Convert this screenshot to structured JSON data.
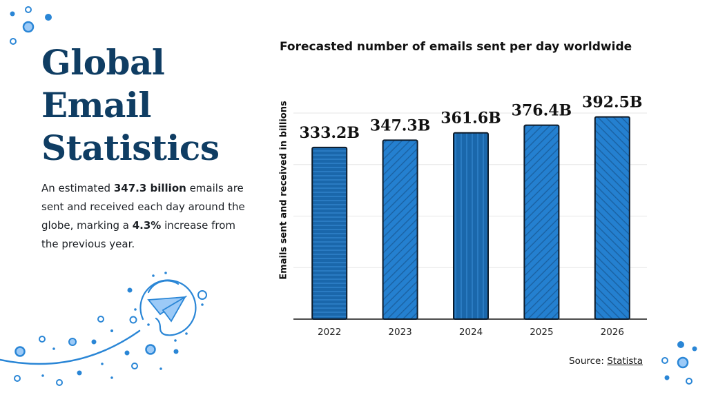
{
  "heading": {
    "lines": [
      "Global",
      "Email",
      "Statistics"
    ]
  },
  "description": {
    "segments": [
      {
        "text": "An estimated ",
        "bold": false
      },
      {
        "text": "347.3 billion",
        "bold": true
      },
      {
        "text": " emails are sent and received each day around the globe, marking a ",
        "bold": false
      },
      {
        "text": "4.3%",
        "bold": true
      },
      {
        "text": " increase from the previous year.",
        "bold": false
      }
    ]
  },
  "colors": {
    "title": "#0f3d63",
    "bar_light": "#2480d0",
    "bar_dark": "#1a67ab",
    "accent": "#2a86d6",
    "accent_fill": "#9ccaf7"
  },
  "icons": [
    "paper-plane-icon",
    "decorative-dots"
  ],
  "source": {
    "label": "Source: ",
    "link": "Statista"
  },
  "chart_data": {
    "type": "bar",
    "title": "Forecasted number of emails sent per day worldwide",
    "xlabel": "",
    "ylabel": "Emails sent and received in billions",
    "categories": [
      "2022",
      "2023",
      "2024",
      "2025",
      "2026"
    ],
    "values": [
      333.2,
      347.3,
      361.6,
      376.4,
      392.5
    ],
    "data_labels": [
      "333.2B",
      "347.3B",
      "361.6B",
      "376.4B",
      "392.5B"
    ],
    "patterns": [
      "horizontal",
      "diagonal-down",
      "vertical",
      "diagonal-down",
      "diagonal-up"
    ],
    "ylim": [
      0,
      400
    ],
    "grid": true,
    "gridline_step": 100
  }
}
